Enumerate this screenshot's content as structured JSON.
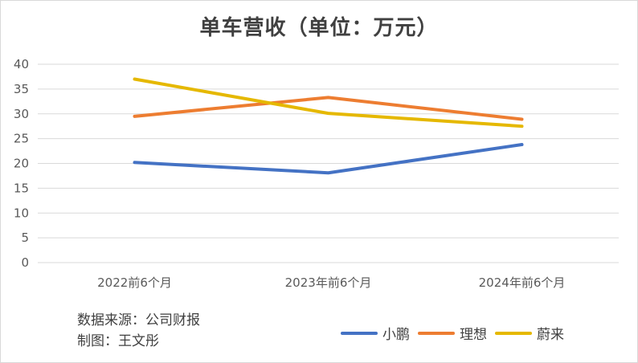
{
  "chart_data": {
    "type": "line",
    "title": "单车营收（单位：万元）",
    "categories": [
      "2022前6个月",
      "2023年前6个月",
      "2024年前6个月"
    ],
    "series": [
      {
        "name": "小鹏",
        "values": [
          20.2,
          18.1,
          23.8
        ],
        "color": "#4472c4"
      },
      {
        "name": "理想",
        "values": [
          29.5,
          33.3,
          28.9
        ],
        "color": "#ed7d31"
      },
      {
        "name": "蔚来",
        "values": [
          37.0,
          30.1,
          27.5
        ],
        "color": "#e5b800"
      }
    ],
    "ylim": [
      0,
      40
    ],
    "yticks": [
      0,
      5,
      10,
      15,
      20,
      25,
      30,
      35,
      40
    ],
    "grid": true,
    "legend": "bottom-right"
  },
  "notes": {
    "source": "数据来源：公司财报",
    "author": "制图：王文彤"
  }
}
